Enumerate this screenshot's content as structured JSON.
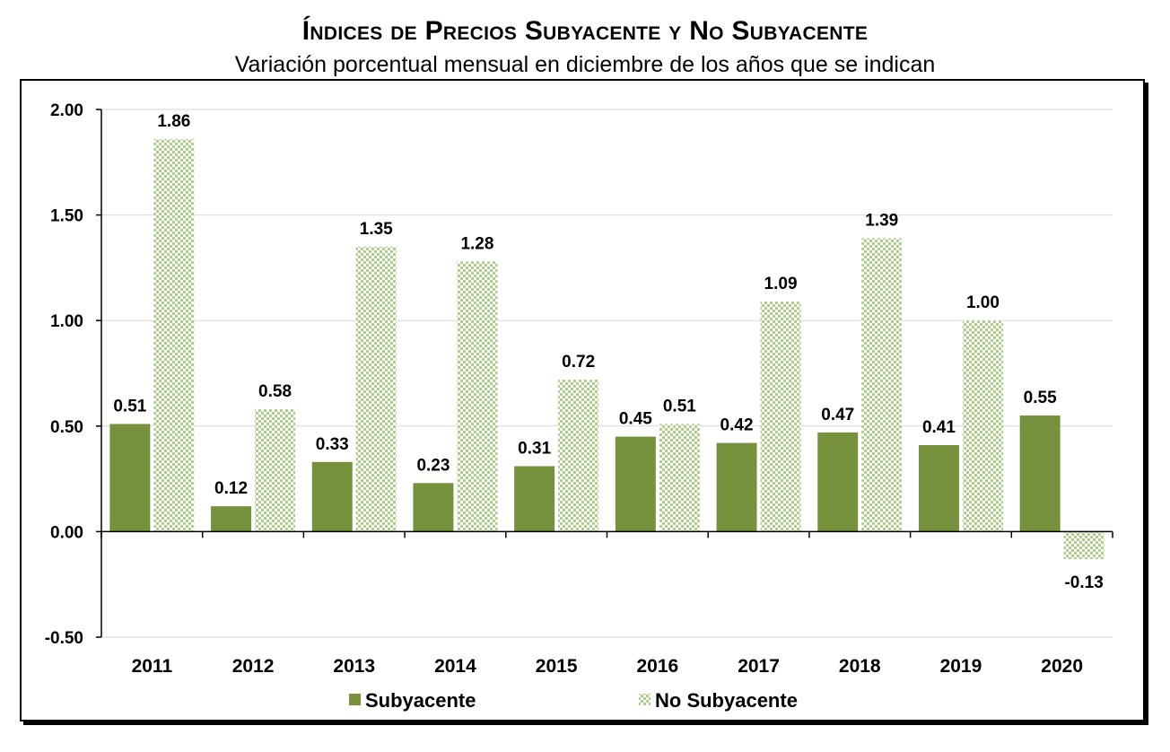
{
  "title": "Índices de Precios Subyacente y No Subyacente",
  "subtitle": "Variación porcentual mensual en diciembre de los años que se indican",
  "colors": {
    "subyacente": "#76923c",
    "no_subyacente_bg": "#ffffff",
    "no_subyacente_dot": "#a6cb7f",
    "grid": "#d9d9d9",
    "axis": "#000000"
  },
  "legend": {
    "position": "bottom",
    "items": [
      "Subyacente",
      "No Subyacente"
    ]
  },
  "chart_data": {
    "type": "bar",
    "title": "Índices de Precios Subyacente y No Subyacente",
    "subtitle": "Variación porcentual mensual en diciembre de los años que se indican",
    "categories": [
      "2011",
      "2012",
      "2013",
      "2014",
      "2015",
      "2016",
      "2017",
      "2018",
      "2019",
      "2020"
    ],
    "series": [
      {
        "name": "Subyacente",
        "values": [
          0.51,
          0.12,
          0.33,
          0.23,
          0.31,
          0.45,
          0.42,
          0.47,
          0.41,
          0.55
        ]
      },
      {
        "name": "No Subyacente",
        "values": [
          1.86,
          0.58,
          1.35,
          1.28,
          0.72,
          0.51,
          1.09,
          1.39,
          1.0,
          -0.13
        ]
      }
    ],
    "ylim": [
      -0.5,
      2.0
    ],
    "yticks": [
      "2.00",
      "1.50",
      "1.00",
      "0.50",
      "0.00",
      "-0.50"
    ],
    "ytick_values": [
      2.0,
      1.5,
      1.0,
      0.5,
      0.0,
      -0.5
    ],
    "value_labels": [
      [
        "0.51",
        "0.12",
        "0.33",
        "0.23",
        "0.31",
        "0.45",
        "0.42",
        "0.47",
        "0.41",
        "0.55"
      ],
      [
        "1.86",
        "0.58",
        "1.35",
        "1.28",
        "0.72",
        "0.51",
        "1.09",
        "1.39",
        "1.00",
        "-0.13"
      ]
    ],
    "grid": true,
    "legend_position": "bottom"
  }
}
